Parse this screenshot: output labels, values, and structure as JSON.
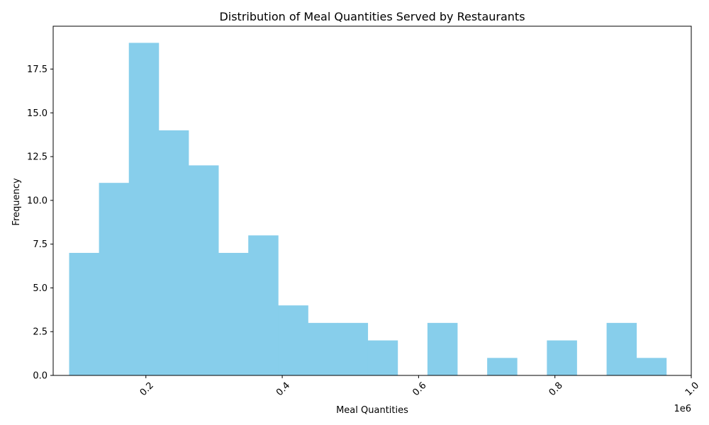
{
  "chart_data": {
    "type": "bar",
    "title": "Distribution of Meal Quantities Served by Restaurants",
    "xlabel": "Meal Quantities",
    "ylabel": "Frequency",
    "x_offset_label": "1e6",
    "x_scale_factor": 1000000,
    "xlim": [
      0.064,
      1.0
    ],
    "ylim": [
      0,
      19.95
    ],
    "x_ticks": [
      0.2,
      0.4,
      0.6,
      0.8,
      1.0
    ],
    "x_tick_labels": [
      "0.2",
      "0.4",
      "0.6",
      "0.8",
      "1.0"
    ],
    "y_ticks": [
      0,
      2.5,
      5,
      7.5,
      10,
      12.5,
      15,
      17.5
    ],
    "y_tick_labels": [
      "0.0",
      "2.5",
      "5.0",
      "7.5",
      "10.0",
      "12.5",
      "15.0",
      "17.5"
    ],
    "bin_edges": [
      0.0874,
      0.1312,
      0.175,
      0.2188,
      0.2626,
      0.3064,
      0.3502,
      0.394,
      0.4378,
      0.4816,
      0.5254,
      0.5692,
      0.613,
      0.6568,
      0.7006,
      0.7444,
      0.7882,
      0.832,
      0.8758,
      0.9196,
      0.9634
    ],
    "values": [
      7,
      11,
      19,
      14,
      12,
      7,
      8,
      4,
      3,
      3,
      2,
      0,
      3,
      0,
      1,
      0,
      2,
      0,
      3,
      1
    ],
    "bar_color": "#87ceeb",
    "grid": false
  }
}
